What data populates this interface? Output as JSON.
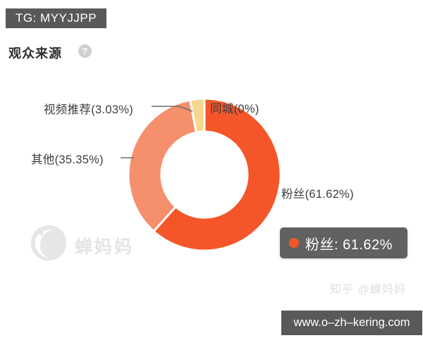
{
  "top_badge": {
    "text": "TG: MYYJJPP",
    "bg": "#58595b"
  },
  "header": {
    "title": "观众来源",
    "help_icon_glyph": "?"
  },
  "chart_data": {
    "type": "pie",
    "subtype": "donut",
    "title": "观众来源",
    "legend_position": "none",
    "inner_radius_ratio": 0.565,
    "start_angle_clockwise_from_top_deg": 0,
    "segments": [
      {
        "label": "粉丝",
        "value": 61.62,
        "display": "粉丝(61.62%)",
        "color": "#f4562a"
      },
      {
        "label": "其他",
        "value": 35.35,
        "display": "其他(35.35%)",
        "color": "#f68f6b"
      },
      {
        "label": "视频推荐",
        "value": 3.03,
        "display": "视频推荐(3.03%)",
        "color": "#f5d78e"
      },
      {
        "label": "同城",
        "value": 0,
        "display": "同城(0%)",
        "color": "#f4562a"
      }
    ]
  },
  "tooltip": {
    "text": "粉丝: 61.62%",
    "dot_color": "#f4562a",
    "bg": "rgba(84,84,86,0.92)"
  },
  "watermark": {
    "text": "蝉妈妈",
    "logo": "chanmama-cicada-logo",
    "color": "#e4e4e4"
  },
  "attribution": {
    "text": "知乎 @蝉妈妈"
  },
  "url_badge": {
    "text": "www.o–zh–kering.com",
    "bg": "#58595b"
  }
}
